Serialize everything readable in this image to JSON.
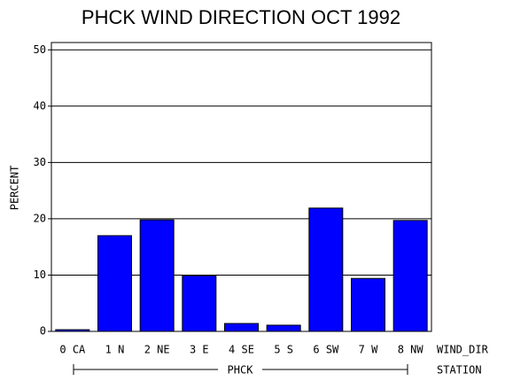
{
  "chart_data": {
    "type": "bar",
    "title": "PHCK WIND DIRECTION OCT 1992",
    "y_label": "PERCENT",
    "x_label": "WIND_DIR",
    "group_label": "PHCK",
    "group_axis_label": "STATION",
    "categories": [
      "0 CA",
      "1 N",
      "2 NE",
      "3 E",
      "4 SE",
      "5 S",
      "6 SW",
      "7 W",
      "8 NW"
    ],
    "values": [
      0.3,
      17.0,
      19.8,
      9.9,
      1.4,
      1.1,
      21.9,
      9.4,
      19.7
    ],
    "color": "#0000ff",
    "ylim": [
      0,
      51.3
    ],
    "yticks": [
      0,
      10,
      20,
      30,
      40,
      50
    ],
    "grid": true
  }
}
